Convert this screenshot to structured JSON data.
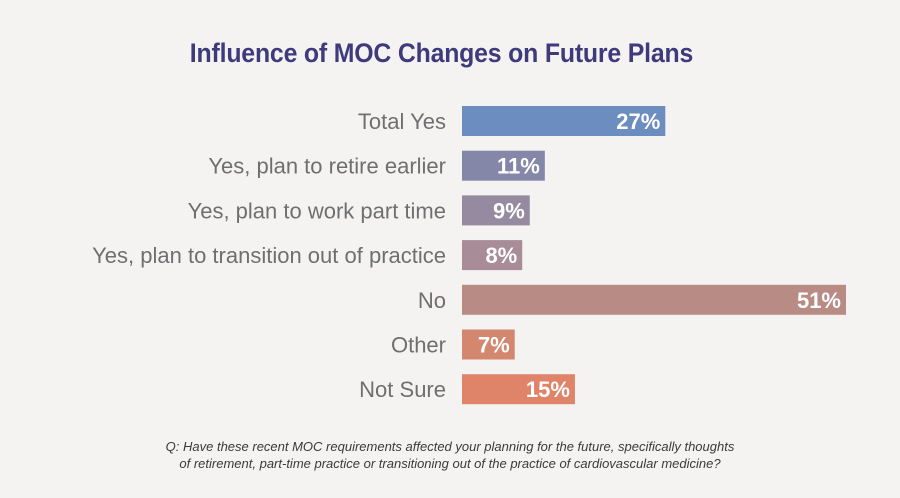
{
  "chart_data": {
    "type": "bar",
    "orientation": "horizontal",
    "title": "Influence of MOC Changes on Future Plans",
    "categories": [
      "Total Yes",
      "Yes, plan to retire earlier",
      "Yes, plan to work part time",
      "Yes, plan to transition out of practice",
      "No",
      "Other",
      "Not Sure"
    ],
    "values": [
      27,
      11,
      9,
      8,
      51,
      7,
      15
    ],
    "value_labels": [
      "27%",
      "11%",
      "9%",
      "8%",
      "51%",
      "7%",
      "15%"
    ],
    "colors": [
      "#6c8dbf",
      "#8487a8",
      "#958aa0",
      "#a88c97",
      "#b98b85",
      "#d3876f",
      "#df8469"
    ],
    "xlim": [
      0,
      51
    ],
    "xlabel": "",
    "ylabel": "",
    "grid": false,
    "legend": "none"
  },
  "footnote": {
    "line1": "Q:   Have these recent MOC requirements affected your planning for the future, specifically thoughts",
    "line2": "of retirement, part-time practice or transitioning out of the practice of cardiovascular medicine?"
  }
}
